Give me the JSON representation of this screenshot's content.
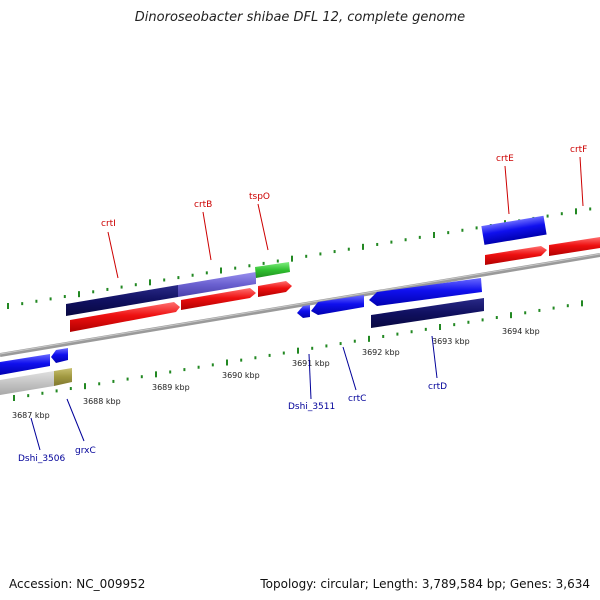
{
  "title": "Dinoroseobacter shibae DFL 12, complete genome",
  "footer": {
    "accession": "Accession: NC_009952",
    "summary": "Topology: circular; Length: 3,789,584 bp; Genes: 3,634"
  },
  "scale_labels": [
    "3687 kbp",
    "3688 kbp",
    "3689 kbp",
    "3690 kbp",
    "3691 kbp",
    "3692 kbp",
    "3693 kbp",
    "3694 kbp"
  ],
  "gene_labels_top": [
    "crtI",
    "crtB",
    "tspO",
    "crtE",
    "crtF"
  ],
  "gene_labels_bottom": [
    "Dshi_3506",
    "grxC",
    "Dshi_3511",
    "crtC",
    "crtD"
  ],
  "colors": {
    "label_top": "#cc0000",
    "label_bottom": "#000099",
    "tick": "#228822",
    "backbone": "#888888"
  }
}
